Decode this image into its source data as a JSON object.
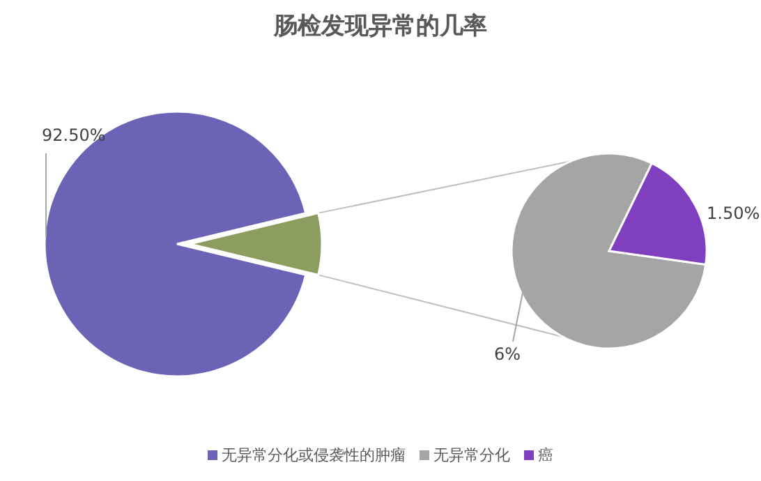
{
  "chart_data": [
    {
      "type": "pie",
      "title": "肠检发现异常的几率",
      "categories": [
        "无异常分化或侵袭性的肿瘤",
        null
      ],
      "values": [
        92.5,
        7.5
      ],
      "colors": [
        "#6b63b5",
        "#8c9e5f"
      ],
      "value_labels": [
        "92.50%",
        null
      ],
      "legend": "bottom"
    },
    {
      "type": "pie",
      "categories": [
        "无异常分化",
        "癌"
      ],
      "values": [
        6,
        1.5
      ],
      "colors": [
        "#a5a5a5",
        "#7f3fbf"
      ],
      "value_labels": [
        "6%",
        "1.50%"
      ],
      "legend": "bottom"
    }
  ]
}
